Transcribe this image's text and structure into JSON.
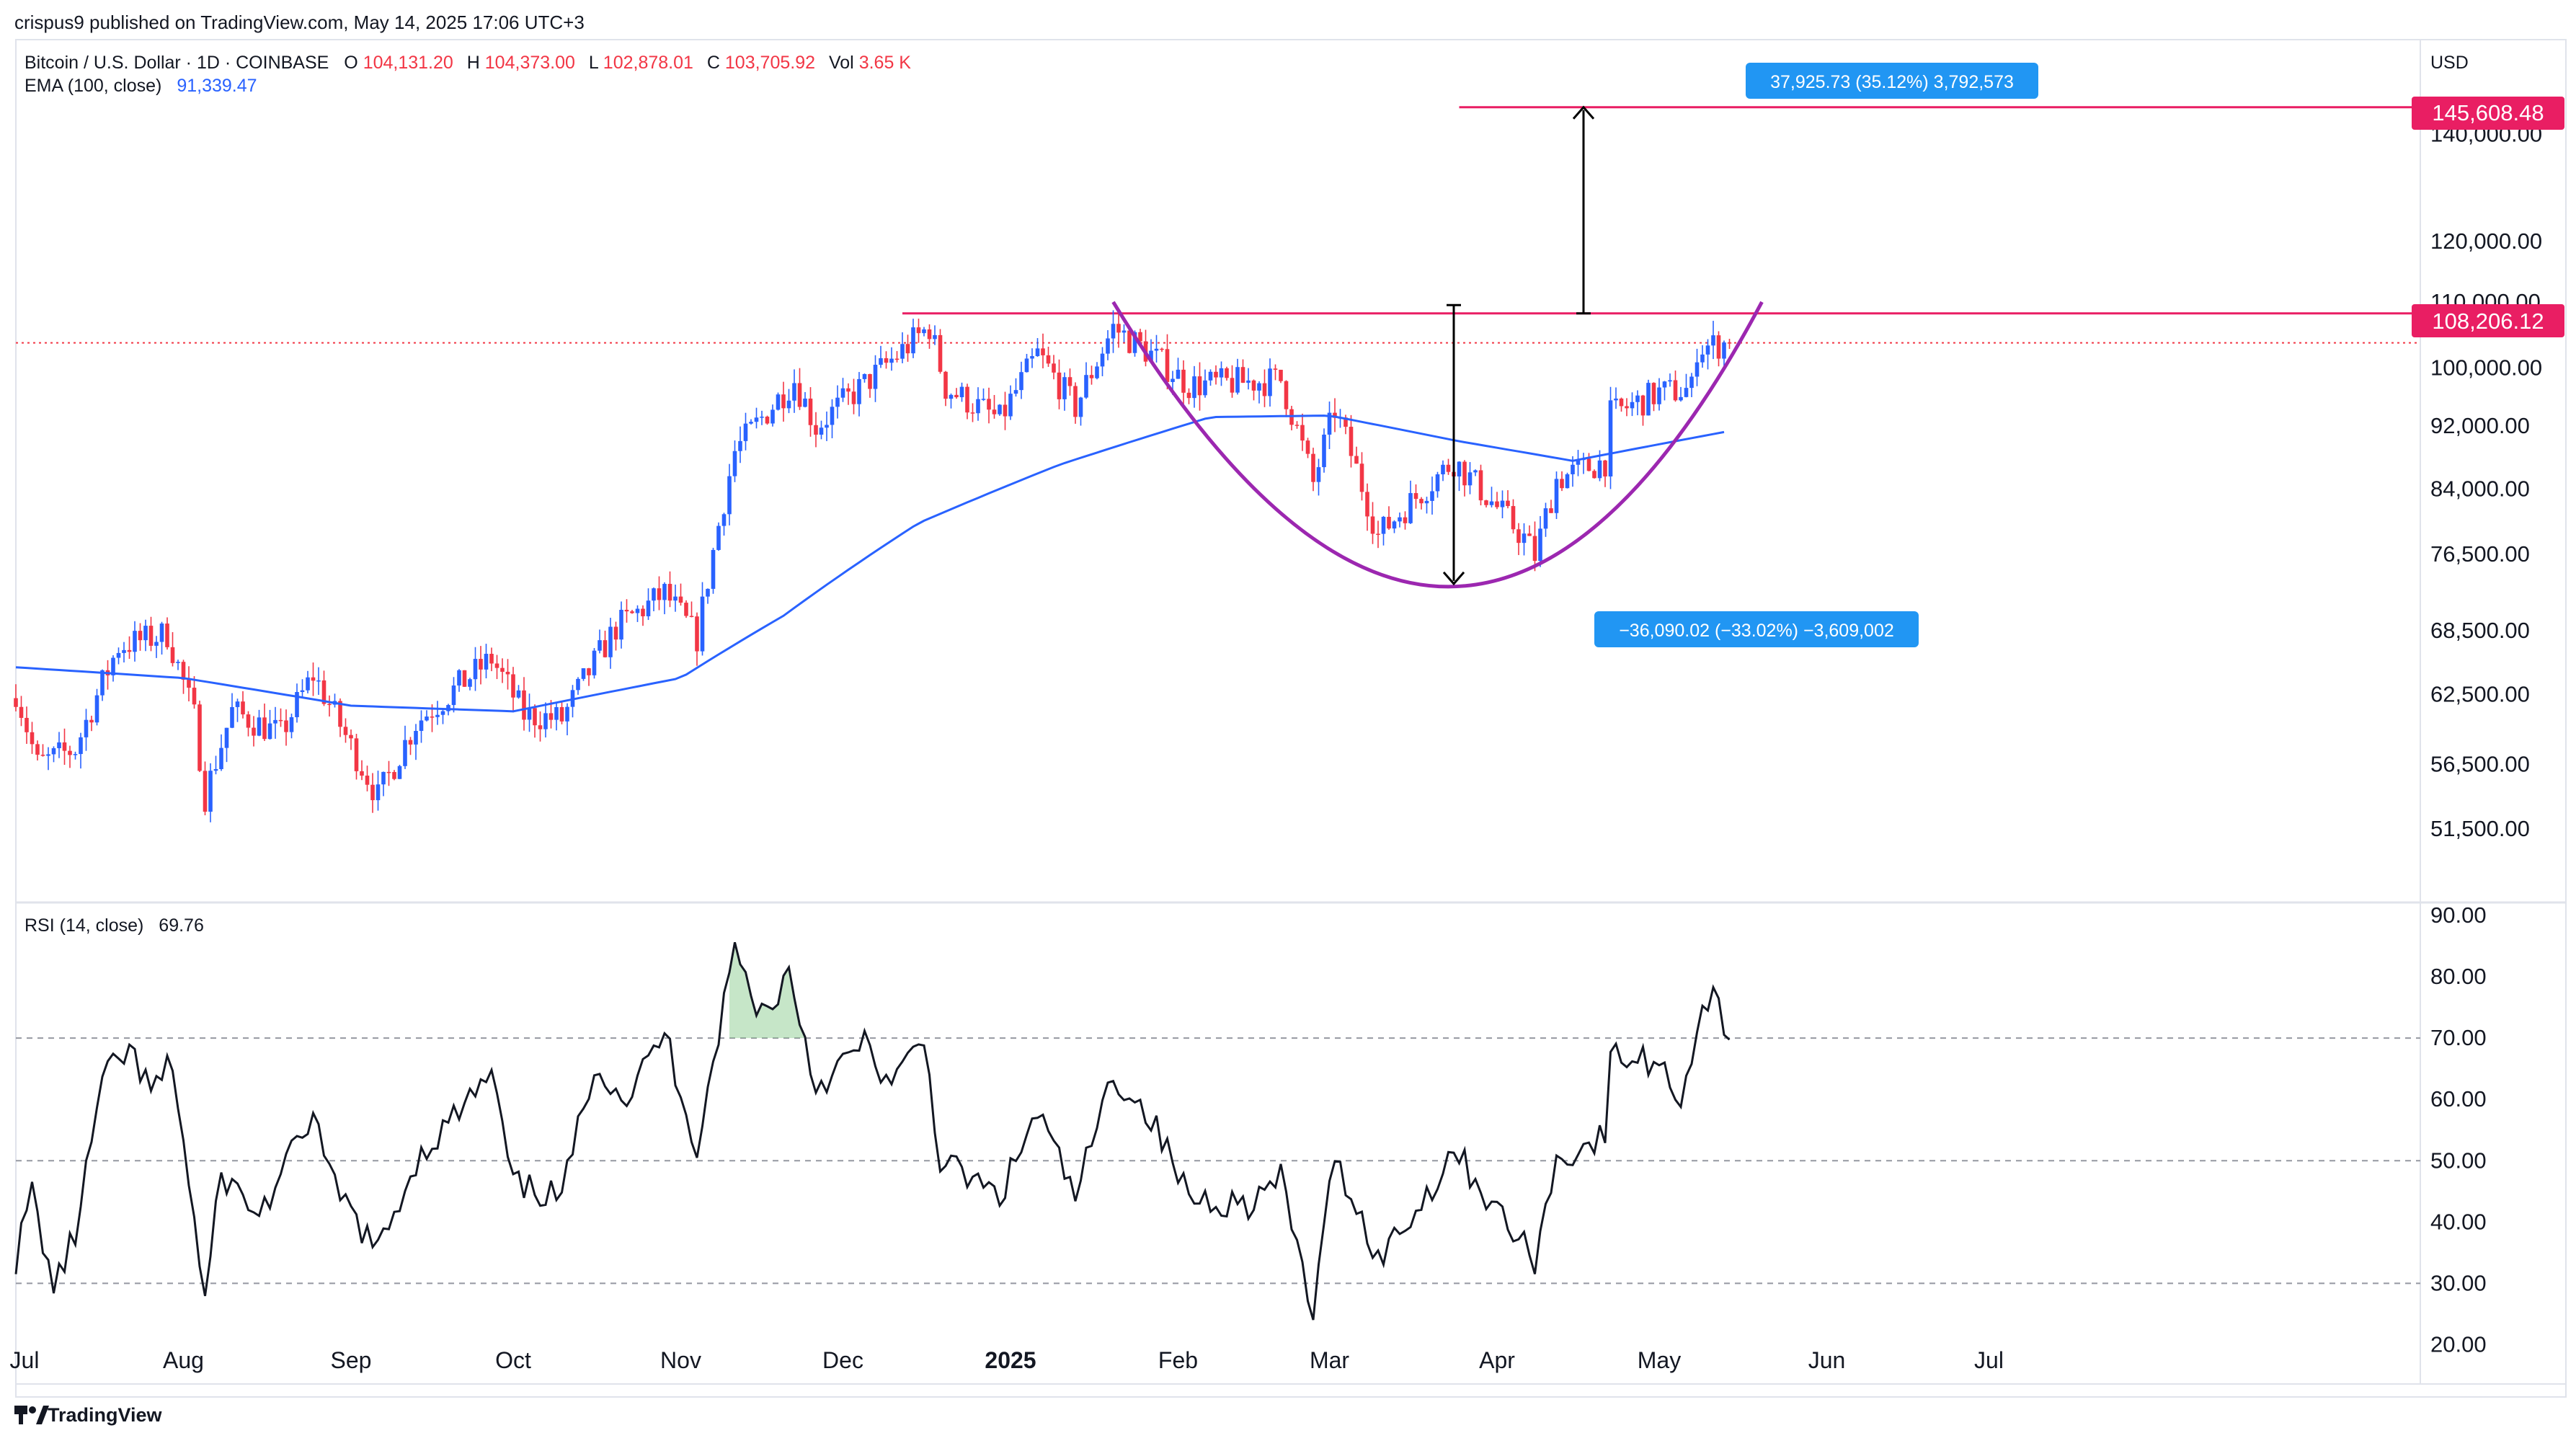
{
  "header": {
    "published": "crispus9 published on TradingView.com, May 14, 2025 17:06 UTC+3",
    "symbol": "Bitcoin / U.S. Dollar · 1D · COINBASE",
    "ohlc": [
      {
        "label": "O",
        "value": "104,131.20"
      },
      {
        "label": "H",
        "value": "104,373.00"
      },
      {
        "label": "L",
        "value": "102,878.01"
      },
      {
        "label": "C",
        "value": "103,705.92"
      },
      {
        "label": "Vol",
        "value": "3.65 K"
      }
    ],
    "ema_label": "EMA (100, close)",
    "ema_value": "91,339.47",
    "currency": "USD"
  },
  "rsi": {
    "label": "RSI (14, close)",
    "value": "69.76"
  },
  "footer": {
    "brand": "TradingView"
  },
  "colors": {
    "up": "#2962ff",
    "down": "#f23645",
    "ema": "#2962ff",
    "cup": "#9c27b0",
    "level": "#e91e63",
    "badge": "#2196f3"
  },
  "annotations": {
    "upper_measure": "37,925.73 (35.12%) 3,792,573",
    "lower_measure": "−36,090.02 (−33.02%) −3,609,002",
    "target_price": "145,608.48",
    "resistance_price": "108,206.12"
  },
  "chart_data": [
    {
      "type": "candlestick",
      "title": "Bitcoin / U.S. Dollar · 1D · COINBASE",
      "y_scale": "log",
      "ylim": [
        47000,
        160000
      ],
      "y_ticks": [
        "140,000.00",
        "120,000.00",
        "110,000.00",
        "100,000.00",
        "92,000.00",
        "84,000.00",
        "76,500.00",
        "68,500.00",
        "62,500.00",
        "56,500.00",
        "51,500.00"
      ],
      "x_labels": [
        "Jul",
        "Aug",
        "Sep",
        "Oct",
        "Nov",
        "Dec",
        "2025",
        "Feb",
        "Mar",
        "Apr",
        "May",
        "Jun",
        "Jul"
      ],
      "price_path": [
        {
          "date": "2024-07-01",
          "close": 62800
        },
        {
          "date": "2024-07-05",
          "close": 56500
        },
        {
          "date": "2024-07-12",
          "close": 57800
        },
        {
          "date": "2024-07-20",
          "close": 67000
        },
        {
          "date": "2024-07-29",
          "close": 68200
        },
        {
          "date": "2024-08-03",
          "close": 60500
        },
        {
          "date": "2024-08-05",
          "close": 54000
        },
        {
          "date": "2024-08-10",
          "close": 61000
        },
        {
          "date": "2024-08-19",
          "close": 59000
        },
        {
          "date": "2024-08-25",
          "close": 64300
        },
        {
          "date": "2024-09-01",
          "close": 58000
        },
        {
          "date": "2024-09-06",
          "close": 53900
        },
        {
          "date": "2024-09-13",
          "close": 60000
        },
        {
          "date": "2024-09-27",
          "close": 65800
        },
        {
          "date": "2024-10-03",
          "close": 60700
        },
        {
          "date": "2024-10-10",
          "close": 60300
        },
        {
          "date": "2024-10-20",
          "close": 68800
        },
        {
          "date": "2024-10-29",
          "close": 72300
        },
        {
          "date": "2024-11-04",
          "close": 67800
        },
        {
          "date": "2024-11-11",
          "close": 88700
        },
        {
          "date": "2024-11-22",
          "close": 98300
        },
        {
          "date": "2024-11-26",
          "close": 91900
        },
        {
          "date": "2024-12-05",
          "close": 97700
        },
        {
          "date": "2024-12-17",
          "close": 106100
        },
        {
          "date": "2024-12-20",
          "close": 97200
        },
        {
          "date": "2024-12-30",
          "close": 92800
        },
        {
          "date": "2025-01-06",
          "close": 102000
        },
        {
          "date": "2025-01-13",
          "close": 94500
        },
        {
          "date": "2025-01-20",
          "close": 106000
        },
        {
          "date": "2025-01-26",
          "close": 102600
        },
        {
          "date": "2025-02-03",
          "close": 97600
        },
        {
          "date": "2025-02-20",
          "close": 98300
        },
        {
          "date": "2025-02-26",
          "close": 84700
        },
        {
          "date": "2025-03-02",
          "close": 94200
        },
        {
          "date": "2025-03-10",
          "close": 78600
        },
        {
          "date": "2025-03-24",
          "close": 87500
        },
        {
          "date": "2025-03-31",
          "close": 82500
        },
        {
          "date": "2025-04-06",
          "close": 78300
        },
        {
          "date": "2025-04-08",
          "close": 76300
        },
        {
          "date": "2025-04-12",
          "close": 85200
        },
        {
          "date": "2025-04-21",
          "close": 87500
        },
        {
          "date": "2025-04-22",
          "close": 93500
        },
        {
          "date": "2025-05-01",
          "close": 96500
        },
        {
          "date": "2025-05-07",
          "close": 97000
        },
        {
          "date": "2025-05-08",
          "close": 103000
        },
        {
          "date": "2025-05-14",
          "close": 103705.92
        }
      ],
      "ema_100": [
        {
          "date": "2024-07-01",
          "value": 65000
        },
        {
          "date": "2024-08-01",
          "value": 64000
        },
        {
          "date": "2024-09-01",
          "value": 61500
        },
        {
          "date": "2024-10-01",
          "value": 61000
        },
        {
          "date": "2024-11-01",
          "value": 64000
        },
        {
          "date": "2024-11-20",
          "value": 70000
        },
        {
          "date": "2024-12-15",
          "value": 80000
        },
        {
          "date": "2025-01-10",
          "value": 87000
        },
        {
          "date": "2025-02-07",
          "value": 93200
        },
        {
          "date": "2025-03-01",
          "value": 93400
        },
        {
          "date": "2025-03-25",
          "value": 90000
        },
        {
          "date": "2025-04-15",
          "value": 87500
        },
        {
          "date": "2025-05-14",
          "value": 91339.47
        }
      ],
      "levels": [
        {
          "name": "target",
          "value": 145608.48,
          "from": "2025-03-25",
          "to": "2025-07-01"
        },
        {
          "name": "resistance",
          "value": 108206.12,
          "from": "2024-12-12",
          "to": "2025-07-01"
        }
      ],
      "last_price": 103705.92
    },
    {
      "type": "line",
      "title": "RSI (14, close)",
      "ylim": [
        15,
        92
      ],
      "y_ticks": [
        "90.00",
        "80.00",
        "70.00",
        "60.00",
        "50.00",
        "40.00",
        "30.00",
        "20.00"
      ],
      "reference_lines": [
        70,
        50,
        30
      ],
      "series": [
        {
          "name": "RSI",
          "values": [
            {
              "date": "2024-07-01",
              "value": 34
            },
            {
              "date": "2024-07-04",
              "value": 45
            },
            {
              "date": "2024-07-08",
              "value": 29
            },
            {
              "date": "2024-07-12",
              "value": 38
            },
            {
              "date": "2024-07-17",
              "value": 63
            },
            {
              "date": "2024-07-22",
              "value": 68
            },
            {
              "date": "2024-07-26",
              "value": 61
            },
            {
              "date": "2024-07-30",
              "value": 66
            },
            {
              "date": "2024-08-05",
              "value": 27
            },
            {
              "date": "2024-08-08",
              "value": 48
            },
            {
              "date": "2024-08-15",
              "value": 41
            },
            {
              "date": "2024-08-20",
              "value": 49
            },
            {
              "date": "2024-08-25",
              "value": 58
            },
            {
              "date": "2024-08-28",
              "value": 47
            },
            {
              "date": "2024-09-06",
              "value": 35
            },
            {
              "date": "2024-09-13",
              "value": 50
            },
            {
              "date": "2024-09-20",
              "value": 57
            },
            {
              "date": "2024-09-27",
              "value": 64
            },
            {
              "date": "2024-10-01",
              "value": 46
            },
            {
              "date": "2024-10-10",
              "value": 44
            },
            {
              "date": "2024-10-16",
              "value": 66
            },
            {
              "date": "2024-10-22",
              "value": 60
            },
            {
              "date": "2024-10-29",
              "value": 71
            },
            {
              "date": "2024-11-04",
              "value": 52
            },
            {
              "date": "2024-11-11",
              "value": 85
            },
            {
              "date": "2024-11-14",
              "value": 77
            },
            {
              "date": "2024-11-17",
              "value": 74
            },
            {
              "date": "2024-11-21",
              "value": 81
            },
            {
              "date": "2024-11-26",
              "value": 62
            },
            {
              "date": "2024-12-05",
              "value": 69
            },
            {
              "date": "2024-12-10",
              "value": 62
            },
            {
              "date": "2024-12-16",
              "value": 70
            },
            {
              "date": "2024-12-19",
              "value": 50
            },
            {
              "date": "2024-12-30",
              "value": 44
            },
            {
              "date": "2025-01-06",
              "value": 58
            },
            {
              "date": "2025-01-13",
              "value": 44
            },
            {
              "date": "2025-01-20",
              "value": 64
            },
            {
              "date": "2025-01-27",
              "value": 57
            },
            {
              "date": "2025-02-03",
              "value": 44
            },
            {
              "date": "2025-02-14",
              "value": 43
            },
            {
              "date": "2025-02-20",
              "value": 47
            },
            {
              "date": "2025-02-26",
              "value": 25
            },
            {
              "date": "2025-03-02",
              "value": 51
            },
            {
              "date": "2025-03-10",
              "value": 34
            },
            {
              "date": "2025-03-18",
              "value": 43
            },
            {
              "date": "2025-03-24",
              "value": 52
            },
            {
              "date": "2025-03-31",
              "value": 43
            },
            {
              "date": "2025-04-06",
              "value": 36
            },
            {
              "date": "2025-04-08",
              "value": 34
            },
            {
              "date": "2025-04-12",
              "value": 50
            },
            {
              "date": "2025-04-21",
              "value": 54
            },
            {
              "date": "2025-04-22",
              "value": 67
            },
            {
              "date": "2025-05-01",
              "value": 66
            },
            {
              "date": "2025-05-05",
              "value": 60
            },
            {
              "date": "2025-05-09",
              "value": 75
            },
            {
              "date": "2025-05-11",
              "value": 77
            },
            {
              "date": "2025-05-14",
              "value": 69.76
            }
          ]
        }
      ]
    }
  ]
}
